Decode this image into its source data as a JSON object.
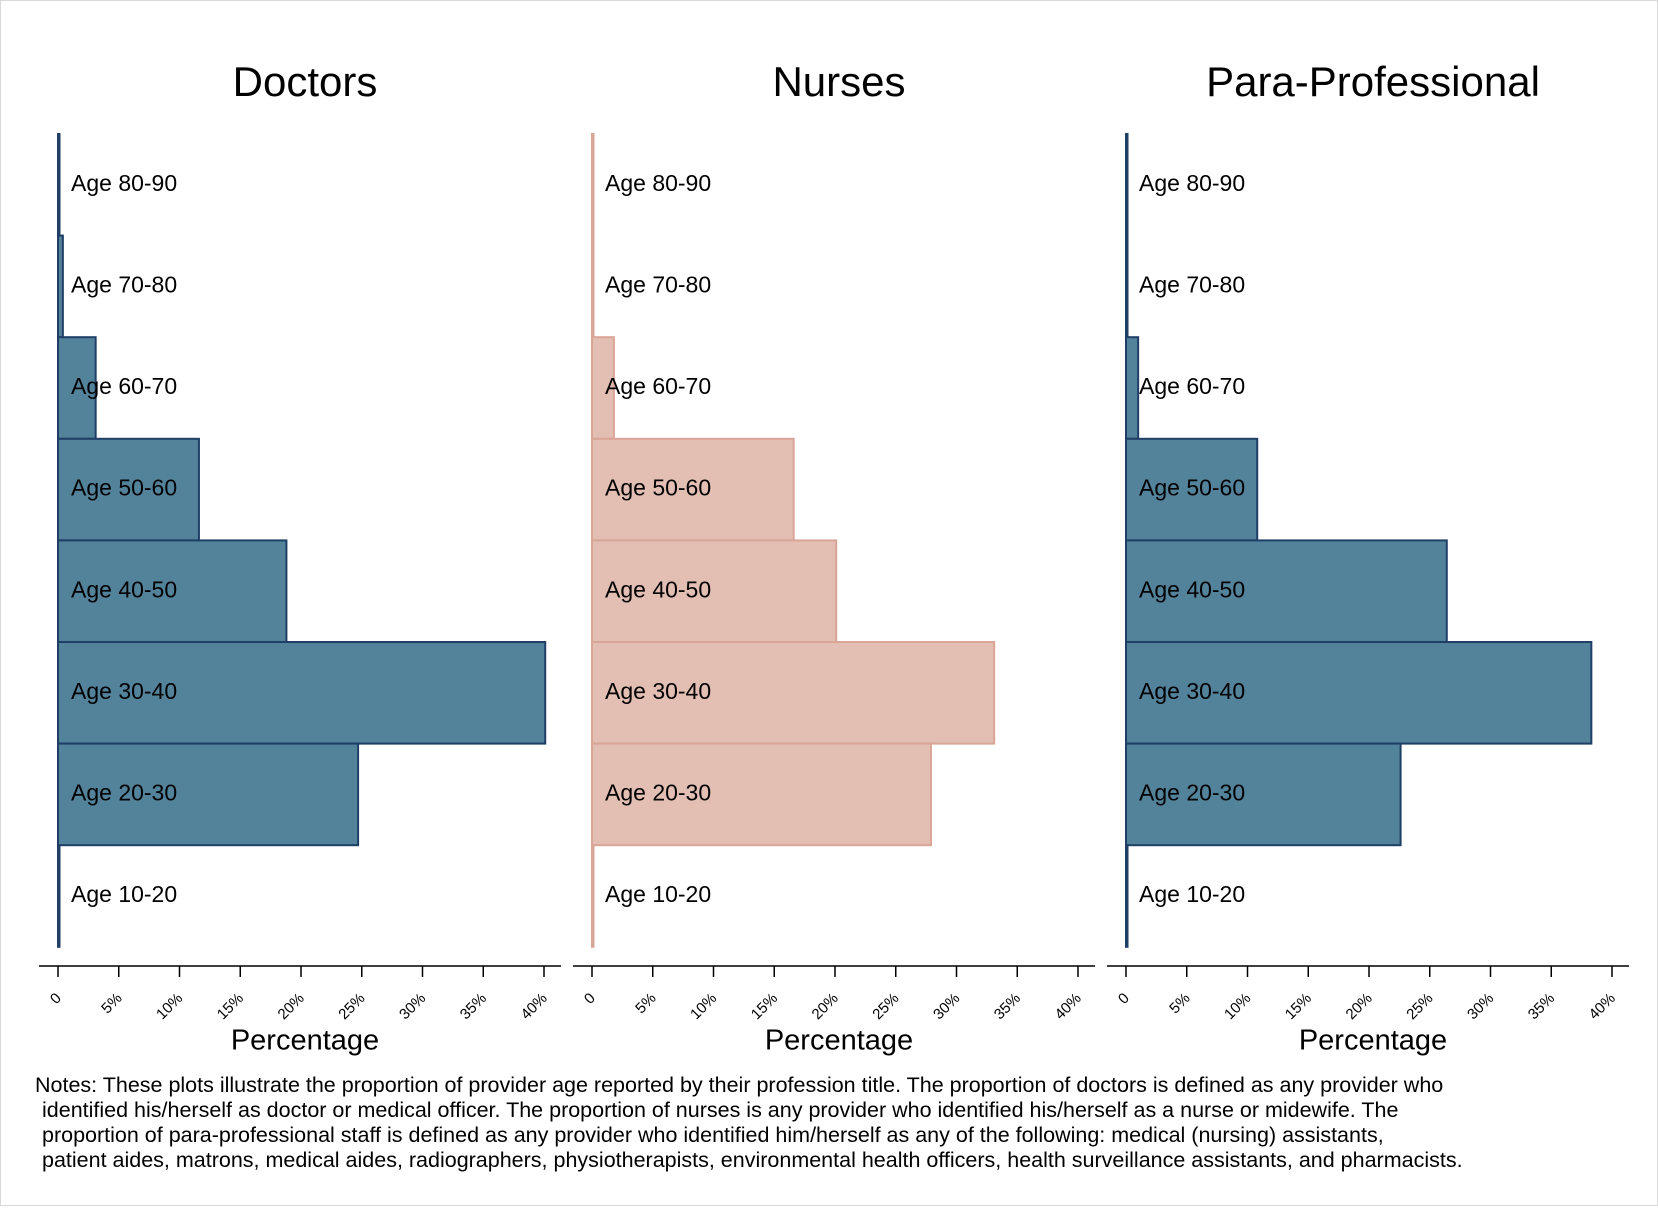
{
  "chart_data": [
    {
      "type": "bar",
      "orientation": "horizontal",
      "title": "Doctors",
      "xlabel": "Percentage",
      "ylabel": "",
      "xlim": [
        0,
        40
      ],
      "x_ticks": [
        "0",
        "5%",
        "10%",
        "15%",
        "20%",
        "25%",
        "30%",
        "35%",
        "40%"
      ],
      "categories": [
        "Age 80-90",
        "Age 70-80",
        "Age 60-70",
        "Age 50-60",
        "Age 40-50",
        "Age 30-40",
        "Age 20-30",
        "Age 10-20"
      ],
      "values": [
        0.1,
        0.4,
        3.1,
        11.6,
        18.8,
        40.1,
        24.7,
        0.1
      ],
      "color": "#53829b",
      "edge_color": "#1f3f66",
      "grid": false
    },
    {
      "type": "bar",
      "orientation": "horizontal",
      "title": "Nurses",
      "xlabel": "Percentage",
      "ylabel": "",
      "xlim": [
        0,
        40
      ],
      "x_ticks": [
        "0",
        "5%",
        "10%",
        "15%",
        "20%",
        "25%",
        "30%",
        "35%",
        "40%"
      ],
      "categories": [
        "Age 80-90",
        "Age 70-80",
        "Age 60-70",
        "Age 50-60",
        "Age 40-50",
        "Age 30-40",
        "Age 20-30",
        "Age 10-20"
      ],
      "values": [
        0.1,
        0.0,
        1.8,
        16.6,
        20.1,
        33.1,
        27.9,
        0.1
      ],
      "color": "#e3bfb3",
      "edge_color": "#d9a596",
      "grid": false
    },
    {
      "type": "bar",
      "orientation": "horizontal",
      "title": "Para-Professional",
      "xlabel": "Percentage",
      "ylabel": "",
      "xlim": [
        0,
        40
      ],
      "x_ticks": [
        "0",
        "5%",
        "10%",
        "15%",
        "20%",
        "25%",
        "30%",
        "35%",
        "40%"
      ],
      "categories": [
        "Age 80-90",
        "Age 70-80",
        "Age 60-70",
        "Age 50-60",
        "Age 40-50",
        "Age 30-40",
        "Age 20-30",
        "Age 10-20"
      ],
      "values": [
        0.1,
        0.0,
        1.0,
        10.8,
        26.4,
        38.3,
        22.6,
        0.0
      ],
      "color": "#53829b",
      "edge_color": "#1f3f66",
      "grid": false
    }
  ],
  "notes": {
    "lines": [
      "Notes: These plots illustrate the proportion of provider age reported by their profession title. The proportion of doctors is defined as any provider who",
      "identified his/herself as doctor or medical officer. The proportion of nurses is any provider who identified his/herself as a nurse or midewife. The",
      "proportion of para-professional staff is defined as any provider who identified him/herself as any of the following: medical (nursing) assistants,",
      "patient aides, matrons, medical aides, radiographers, physiotherapists, environmental health officers, health surveillance assistants, and pharmacists."
    ]
  }
}
